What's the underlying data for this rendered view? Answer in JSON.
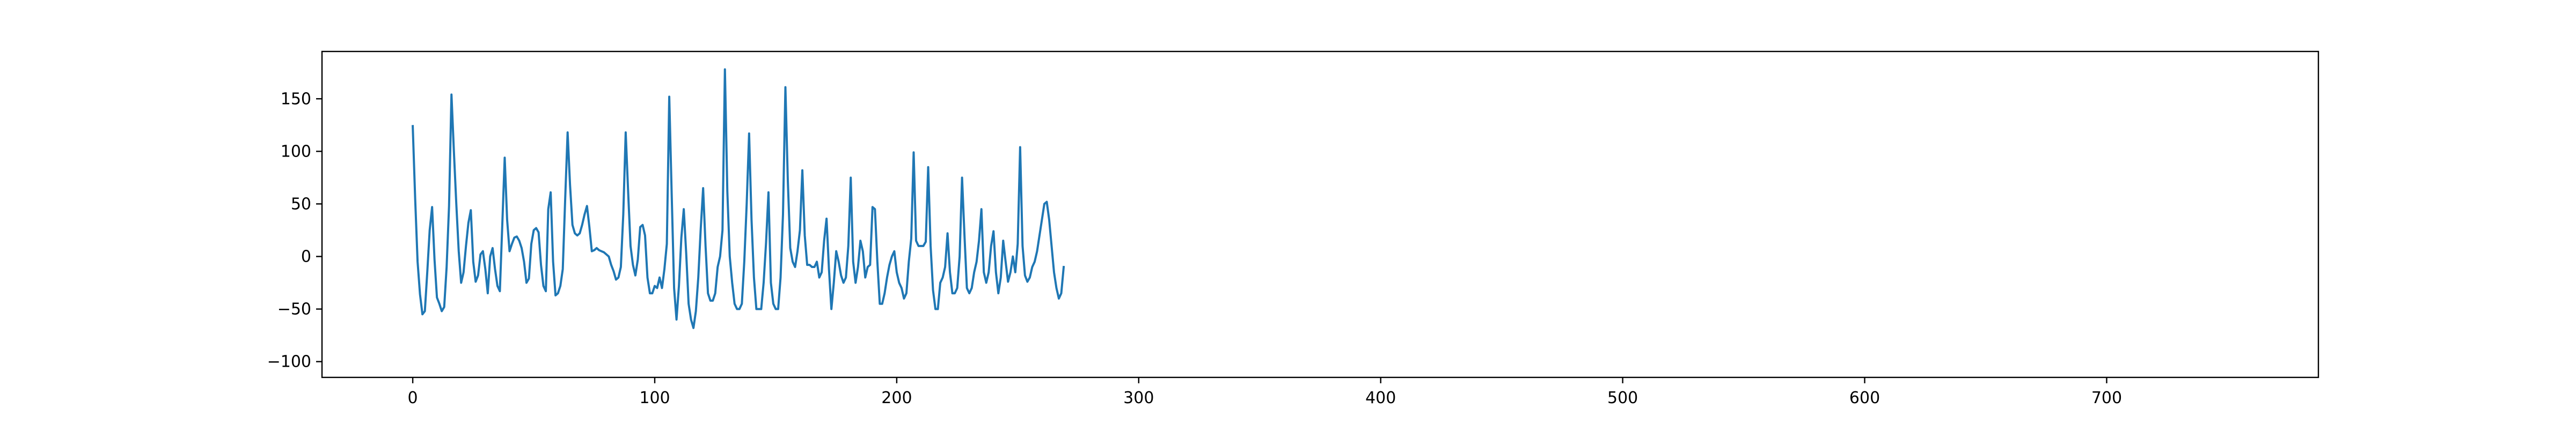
{
  "chart_data": {
    "type": "line",
    "title": "",
    "xlabel": "",
    "ylabel": "",
    "xlim": [
      -37.5,
      787.5
    ],
    "ylim": [
      -115,
      195
    ],
    "x_ticks": [
      0,
      100,
      200,
      300,
      400,
      500,
      600,
      700
    ],
    "y_ticks": [
      -100,
      -50,
      0,
      50,
      100,
      150
    ],
    "x_tick_labels": [
      "0",
      "100",
      "200",
      "300",
      "400",
      "500",
      "600",
      "700"
    ],
    "y_tick_labels": [
      "−100",
      "−50",
      "0",
      "50",
      "100",
      "150"
    ],
    "grid": false,
    "legend": "none",
    "line_color": "#1f77b4",
    "x_start": 0,
    "x_step": 1,
    "series": [
      {
        "values": [
          124,
          55,
          -5,
          -36,
          -55,
          -52,
          -15,
          25,
          47,
          -3,
          -39,
          -45,
          -52,
          -48,
          -10,
          48,
          154,
          100,
          50,
          5,
          -25,
          -15,
          10,
          32,
          44,
          -5,
          -24,
          -18,
          2,
          5,
          -12,
          -35,
          0,
          8,
          -12,
          -28,
          -33,
          30,
          94,
          35,
          5,
          12,
          18,
          19,
          15,
          8,
          -5,
          -25,
          -21,
          12,
          25,
          27,
          23,
          -8,
          -28,
          -33,
          45,
          61,
          -5,
          -37,
          -35,
          -28,
          -12,
          55,
          118,
          68,
          30,
          22,
          20,
          22,
          30,
          40,
          48,
          28,
          5,
          6,
          8,
          6,
          5,
          4,
          2,
          0,
          -8,
          -14,
          -22,
          -20,
          -10,
          40,
          118,
          62,
          10,
          -8,
          -18,
          -3,
          28,
          30,
          20,
          -20,
          -35,
          -35,
          -28,
          -30,
          -20,
          -30,
          -12,
          12,
          152,
          60,
          -30,
          -60,
          -28,
          18,
          45,
          3,
          -45,
          -60,
          -68,
          -52,
          -20,
          26,
          65,
          10,
          -35,
          -42,
          -42,
          -35,
          -10,
          0,
          25,
          178,
          62,
          0,
          -25,
          -45,
          -50,
          -50,
          -45,
          -5,
          50,
          117,
          35,
          -20,
          -50,
          -50,
          -50,
          -25,
          13,
          61,
          -25,
          -45,
          -50,
          -50,
          -20,
          40,
          161,
          72,
          8,
          -5,
          -10,
          5,
          25,
          82,
          20,
          -8,
          -8,
          -10,
          -10,
          -5,
          -20,
          -15,
          15,
          36,
          -12,
          -50,
          -25,
          5,
          -5,
          -18,
          -25,
          -20,
          10,
          75,
          -5,
          -25,
          -10,
          15,
          5,
          -20,
          -10,
          -8,
          47,
          45,
          -5,
          -45,
          -45,
          -35,
          -20,
          -8,
          0,
          5,
          -15,
          -25,
          -30,
          -40,
          -35,
          -5,
          17,
          99,
          15,
          10,
          10,
          10,
          14,
          85,
          10,
          -32,
          -50,
          -50,
          -25,
          -20,
          -10,
          22,
          -15,
          -35,
          -35,
          -30,
          0,
          75,
          20,
          -30,
          -35,
          -30,
          -15,
          -5,
          15,
          45,
          -15,
          -25,
          -15,
          10,
          24,
          -15,
          -35,
          -20,
          15,
          -5,
          -24,
          -15,
          0,
          -15,
          12,
          104,
          10,
          -18,
          -24,
          -20,
          -10,
          -5,
          5,
          20,
          35,
          50,
          52,
          35,
          10,
          -15,
          -30,
          -40,
          -35,
          -10
        ],
        "_note_omit": true
      }
    ]
  }
}
